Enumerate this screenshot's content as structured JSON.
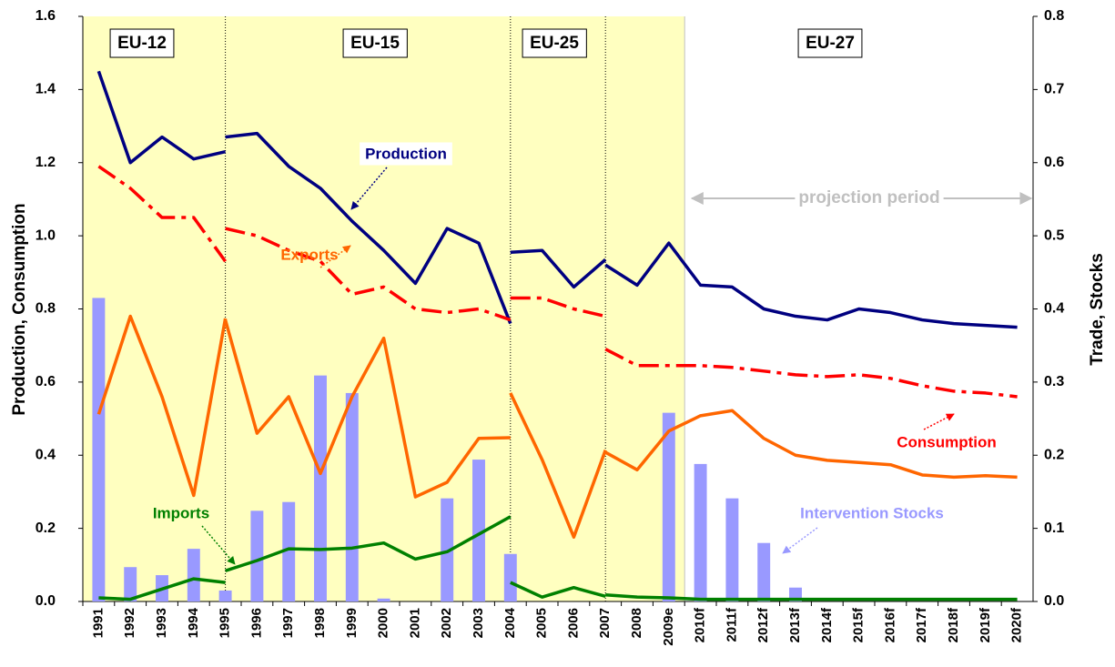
{
  "chart_data": {
    "type": "combo",
    "categories": [
      "1991",
      "1992",
      "1993",
      "1994",
      "1995",
      "1996",
      "1997",
      "1998",
      "1999",
      "2000",
      "2001",
      "2002",
      "2003",
      "2004",
      "2005",
      "2006",
      "2007",
      "2008",
      "2009e",
      "2010f",
      "2011f",
      "2012f",
      "2013f",
      "2014f",
      "2015f",
      "2016f",
      "2017f",
      "2018f",
      "2019f",
      "2020f"
    ],
    "y_label": "Production, Consumption",
    "y2_label": "Trade, Stocks",
    "ylim": [
      0,
      1.6
    ],
    "yticks": [
      {
        "value": 0,
        "label": "0.0"
      },
      0.2,
      0.4,
      0.6,
      0.8,
      {
        "value": 1,
        "label": "1.0"
      },
      1.2,
      1.4,
      1.6
    ],
    "y2lim": [
      0,
      0.8
    ],
    "y2ticks": [
      {
        "value": 0,
        "label": "0.0"
      },
      0.1,
      0.2,
      0.3,
      0.4,
      0.5,
      0.6,
      0.7,
      0.8
    ],
    "periods": [
      "EU-12",
      "EU-15",
      "EU-25",
      "EU-27"
    ],
    "projection_label": "projection period",
    "series": [
      {
        "name": "Intervention Stocks",
        "type": "bar",
        "axis": "y2",
        "color": "#9999ff",
        "values": [
          0.415,
          0.047,
          0.036,
          0.072,
          0.015,
          0.124,
          0.136,
          0.309,
          0.285,
          0.004,
          0,
          0.141,
          0.194,
          0.065,
          0,
          0,
          0,
          0,
          0.258,
          0.188,
          0.141,
          0.08,
          0.019,
          0,
          0,
          0,
          0,
          0,
          0,
          0
        ]
      },
      {
        "name": "Production",
        "type": "line",
        "axis": "y",
        "color": "#000080",
        "style": "solid",
        "segments": [
          [
            1.45,
            1.2,
            1.27,
            1.21,
            1.23,
            null,
            null,
            null,
            null,
            null,
            null,
            null,
            null,
            null,
            null,
            null,
            null,
            null,
            null,
            null,
            null,
            null,
            null,
            null,
            null,
            null,
            null,
            null,
            null,
            null
          ],
          [
            null,
            null,
            null,
            null,
            1.27,
            1.28,
            1.19,
            1.13,
            1.04,
            0.96,
            0.87,
            1.02,
            0.98,
            0.76,
            null,
            null,
            null,
            null,
            null,
            null,
            null,
            null,
            null,
            null,
            null,
            null,
            null,
            null,
            null,
            null
          ],
          [
            null,
            null,
            null,
            null,
            null,
            null,
            null,
            null,
            null,
            null,
            null,
            null,
            null,
            0.955,
            0.96,
            0.86,
            0.935,
            null,
            null,
            null,
            null,
            null,
            null,
            null,
            null,
            null,
            null,
            null,
            null,
            null
          ],
          [
            null,
            null,
            null,
            null,
            null,
            null,
            null,
            null,
            null,
            null,
            null,
            null,
            null,
            null,
            null,
            null,
            0.92,
            0.865,
            0.98,
            0.865,
            0.86,
            0.8,
            0.78,
            0.77,
            0.8,
            0.79,
            0.77,
            0.76,
            0.755,
            0.75
          ]
        ]
      },
      {
        "name": "Consumption",
        "type": "line",
        "axis": "y",
        "color": "#ff0000",
        "style": "dashdot",
        "segments": [
          [
            1.19,
            1.13,
            1.05,
            1.05,
            0.93,
            null,
            null,
            null,
            null,
            null,
            null,
            null,
            null,
            null,
            null,
            null,
            null,
            null,
            null,
            null,
            null,
            null,
            null,
            null,
            null,
            null,
            null,
            null,
            null,
            null
          ],
          [
            null,
            null,
            null,
            null,
            1.02,
            1.0,
            0.96,
            0.93,
            0.84,
            0.86,
            0.8,
            0.79,
            0.8,
            0.77,
            null,
            null,
            null,
            null,
            null,
            null,
            null,
            null,
            null,
            null,
            null,
            null,
            null,
            null,
            null,
            null
          ],
          [
            null,
            null,
            null,
            null,
            null,
            null,
            null,
            null,
            null,
            null,
            null,
            null,
            null,
            0.83,
            0.83,
            0.8,
            0.78,
            null,
            null,
            null,
            null,
            null,
            null,
            null,
            null,
            null,
            null,
            null,
            null,
            null
          ],
          [
            null,
            null,
            null,
            null,
            null,
            null,
            null,
            null,
            null,
            null,
            null,
            null,
            null,
            null,
            null,
            null,
            0.69,
            0.645,
            0.645,
            0.645,
            0.64,
            0.63,
            0.62,
            0.615,
            0.62,
            0.61,
            0.59,
            0.575,
            0.57,
            0.56
          ]
        ]
      },
      {
        "name": "Exports",
        "type": "line",
        "axis": "y2",
        "color": "#ff6600",
        "style": "solid",
        "segments": [
          [
            0.256,
            0.39,
            0.28,
            0.145,
            0.387,
            null,
            null,
            null,
            null,
            null,
            null,
            null,
            null,
            null,
            null,
            null,
            null,
            null,
            null,
            null,
            null,
            null,
            null,
            null,
            null,
            null,
            null,
            null,
            null,
            null
          ],
          [
            null,
            null,
            null,
            null,
            0.385,
            0.23,
            0.28,
            0.175,
            0.28,
            0.36,
            0.143,
            0.163,
            0.223,
            0.224,
            null,
            null,
            null,
            null,
            null,
            null,
            null,
            null,
            null,
            null,
            null,
            null,
            null,
            null,
            null,
            null
          ],
          [
            null,
            null,
            null,
            null,
            null,
            null,
            null,
            null,
            null,
            null,
            null,
            null,
            null,
            0.285,
            0.194,
            0.088,
            0.207,
            null,
            null,
            null,
            null,
            null,
            null,
            null,
            null,
            null,
            null,
            null,
            null,
            null
          ],
          [
            null,
            null,
            null,
            null,
            null,
            null,
            null,
            null,
            null,
            null,
            null,
            null,
            null,
            null,
            null,
            null,
            0.204,
            0.18,
            0.233,
            0.254,
            0.261,
            0.223,
            0.2,
            0.193,
            0.19,
            0.187,
            0.173,
            0.17,
            0.172,
            0.17
          ]
        ]
      },
      {
        "name": "Imports",
        "type": "line",
        "axis": "y2",
        "color": "#008000",
        "style": "solid",
        "segments": [
          [
            0.005,
            0.003,
            0.017,
            0.031,
            0.026,
            null,
            null,
            null,
            null,
            null,
            null,
            null,
            null,
            null,
            null,
            null,
            null,
            null,
            null,
            null,
            null,
            null,
            null,
            null,
            null,
            null,
            null,
            null,
            null,
            null
          ],
          [
            null,
            null,
            null,
            null,
            0.042,
            0.056,
            0.072,
            0.071,
            0.073,
            0.08,
            0.058,
            0.068,
            0.092,
            0.116,
            null,
            null,
            null,
            null,
            null,
            null,
            null,
            null,
            null,
            null,
            null,
            null,
            null,
            null,
            null,
            null
          ],
          [
            null,
            null,
            null,
            null,
            null,
            null,
            null,
            null,
            null,
            null,
            null,
            null,
            null,
            0.026,
            0.006,
            0.019,
            0.007,
            null,
            null,
            null,
            null,
            null,
            null,
            null,
            null,
            null,
            null,
            null,
            null,
            null
          ],
          [
            null,
            null,
            null,
            null,
            null,
            null,
            null,
            null,
            null,
            null,
            null,
            null,
            null,
            null,
            null,
            null,
            0.009,
            0.006,
            0.005,
            0.003,
            0.003,
            0.003,
            0.003,
            0.003,
            0.003,
            0.003,
            0.003,
            0.003,
            0.003,
            0.003
          ]
        ]
      }
    ]
  }
}
